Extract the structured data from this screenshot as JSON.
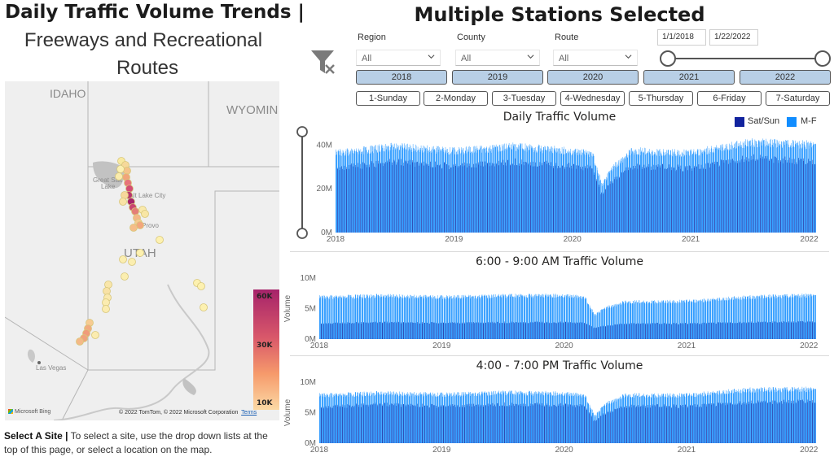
{
  "left": {
    "title_bold": "Daily Traffic Volume Trends |",
    "title_line2": "Freeways and Recreational",
    "title_line3": "Routes",
    "map": {
      "labels": {
        "idaho": "IDAHO",
        "wyoming": "WYOMIN",
        "utah": "UTAH",
        "great_salt": "Great Salt",
        "lake": "Lake",
        "salt_lake_city": "Salt Lake City",
        "provo": "Provo",
        "las_vegas": "Las Vegas"
      },
      "legend": {
        "max": "60K",
        "mid": "30K",
        "min": "10K"
      },
      "bing_text": "Microsoft Bing",
      "copyright": "© 2022 TomTom, © 2022 Microsoft Corporation",
      "terms": "Terms"
    },
    "select_site_bold": "Select A Site |",
    "select_site_text": " To select a site, use the drop down lists at the top of this page, or select a location on the map."
  },
  "right": {
    "title": "Multiple Stations Selected",
    "filter_icon": "clear-filter-icon",
    "slicers": [
      {
        "title": "Region",
        "value": "All"
      },
      {
        "title": "County",
        "value": "All"
      },
      {
        "title": "Route",
        "value": "All"
      }
    ],
    "date_start": "1/1/2018",
    "date_end": "1/22/2022",
    "date_range_fraction": [
      0,
      1
    ],
    "years": [
      "2018",
      "2019",
      "2020",
      "2021",
      "2022"
    ],
    "days": [
      "1-Sunday",
      "2-Monday",
      "3-Tuesday",
      "4-Wednesday",
      "5-Thursday",
      "6-Friday",
      "7-Saturday"
    ],
    "colors": {
      "weekend": "#12239e",
      "weekday": "#118dff",
      "button_fill": "#b8cfe6"
    }
  },
  "chart_data": [
    {
      "type": "bar",
      "title": "Daily Traffic Volume",
      "ylabel": "",
      "ylim": [
        0,
        45000000
      ],
      "yticks": [
        "0M",
        "20M",
        "40M"
      ],
      "xticks": [
        "2018",
        "2019",
        "2020",
        "2021",
        "2022"
      ],
      "legend": {
        "placement": "top-right",
        "entries": [
          "Sat/Sun",
          "M-F"
        ]
      },
      "series": [
        {
          "name": "M-F",
          "color": "#118dff",
          "x": [
            "2018-01",
            "2018-07",
            "2019-01",
            "2019-07",
            "2020-01",
            "2020-03",
            "2020-04",
            "2020-05",
            "2020-07",
            "2021-01",
            "2021-07",
            "2022-01"
          ],
          "values": [
            37000000,
            40000000,
            38000000,
            40000000,
            38000000,
            37000000,
            22000000,
            30000000,
            38000000,
            37000000,
            42000000,
            41000000
          ]
        },
        {
          "name": "Sat/Sun",
          "color": "#12239e",
          "x": [
            "2018-01",
            "2018-07",
            "2019-01",
            "2019-07",
            "2020-01",
            "2020-03",
            "2020-04",
            "2020-05",
            "2020-07",
            "2021-01",
            "2021-07",
            "2022-01"
          ],
          "values": [
            30000000,
            33000000,
            31000000,
            33000000,
            31000000,
            30000000,
            17000000,
            24000000,
            31000000,
            30000000,
            35000000,
            33000000
          ]
        }
      ]
    },
    {
      "type": "bar",
      "title": "6:00 - 9:00 AM Traffic Volume",
      "ylabel": "Volume",
      "ylim": [
        0,
        10000000
      ],
      "yticks": [
        "0M",
        "5M",
        "10M"
      ],
      "xticks": [
        "2018",
        "2019",
        "2020",
        "2021",
        "2022"
      ],
      "series": [
        {
          "name": "M-F",
          "color": "#118dff",
          "x": [
            "2018-01",
            "2018-07",
            "2019-01",
            "2019-07",
            "2020-01",
            "2020-03",
            "2020-04",
            "2020-05",
            "2020-07",
            "2021-01",
            "2021-07",
            "2022-01"
          ],
          "values": [
            7000000,
            7200000,
            7000000,
            7200000,
            7300000,
            7000000,
            4000000,
            5200000,
            6200000,
            6300000,
            7000000,
            7300000
          ]
        },
        {
          "name": "Sat/Sun",
          "color": "#12239e",
          "x": [
            "2018-01",
            "2018-07",
            "2019-01",
            "2019-07",
            "2020-01",
            "2020-03",
            "2020-04",
            "2020-05",
            "2020-07",
            "2021-01",
            "2021-07",
            "2022-01"
          ],
          "values": [
            2600000,
            2800000,
            2700000,
            2800000,
            2800000,
            2700000,
            1800000,
            2200000,
            2600000,
            2600000,
            2800000,
            2900000
          ]
        }
      ]
    },
    {
      "type": "bar",
      "title": "4:00 - 7:00 PM Traffic Volume",
      "ylabel": "Volume",
      "ylim": [
        0,
        10000000
      ],
      "yticks": [
        "0M",
        "5M",
        "10M"
      ],
      "xticks": [
        "2018",
        "2019",
        "2020",
        "2021",
        "2022"
      ],
      "series": [
        {
          "name": "M-F",
          "color": "#118dff",
          "x": [
            "2018-01",
            "2018-07",
            "2019-01",
            "2019-07",
            "2020-01",
            "2020-03",
            "2020-04",
            "2020-05",
            "2020-07",
            "2021-01",
            "2021-07",
            "2022-01"
          ],
          "values": [
            8000000,
            8300000,
            8100000,
            8400000,
            8300000,
            8000000,
            4500000,
            6500000,
            8000000,
            8000000,
            8900000,
            9000000
          ]
        },
        {
          "name": "Sat/Sun",
          "color": "#12239e",
          "x": [
            "2018-01",
            "2018-07",
            "2019-01",
            "2019-07",
            "2020-01",
            "2020-03",
            "2020-04",
            "2020-05",
            "2020-07",
            "2021-01",
            "2021-07",
            "2022-01"
          ],
          "values": [
            6000000,
            6500000,
            6200000,
            6500000,
            6400000,
            6200000,
            3500000,
            5000000,
            6200000,
            6200000,
            6800000,
            7000000
          ]
        }
      ]
    }
  ]
}
